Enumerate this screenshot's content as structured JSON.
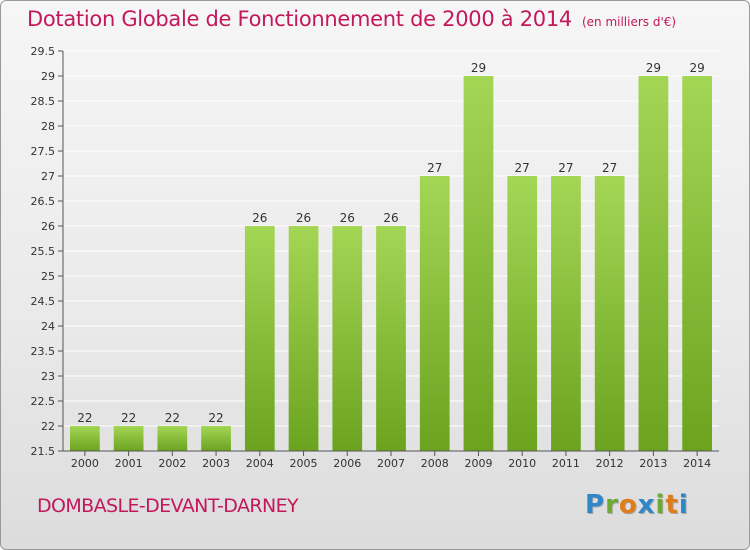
{
  "header": {
    "title": "Dotation Globale de Fonctionnement de 2000 à 2014",
    "subtitle": "(en milliers d'€)"
  },
  "footer": {
    "commune": "DOMBASLE-DEVANT-DARNEY",
    "logo_text": "Proxiti",
    "logo_letters": [
      {
        "ch": "P",
        "color": "#2f86c9"
      },
      {
        "ch": "r",
        "color": "#6cab2d"
      },
      {
        "ch": "o",
        "color": "#e07d1b"
      },
      {
        "ch": "x",
        "color": "#2f86c9"
      },
      {
        "ch": "i",
        "color": "#6cab2d"
      },
      {
        "ch": "t",
        "color": "#e07d1b"
      },
      {
        "ch": "i",
        "color": "#2f86c9"
      }
    ]
  },
  "colors": {
    "accent": "#c3185b",
    "bar_top": "#a4d655",
    "bar_bottom": "#6ba31f",
    "axis": "#555555",
    "grid": "#ffffff",
    "label": "#333333"
  },
  "chart_data": {
    "type": "bar",
    "title": "Dotation Globale de Fonctionnement de 2000 à 2014",
    "subtitle": "(en milliers d'€)",
    "xlabel": "",
    "ylabel": "",
    "categories": [
      "2000",
      "2001",
      "2002",
      "2003",
      "2004",
      "2005",
      "2006",
      "2007",
      "2008",
      "2009",
      "2010",
      "2011",
      "2012",
      "2013",
      "2014"
    ],
    "values": [
      22,
      22,
      22,
      22,
      26,
      26,
      26,
      26,
      27,
      29,
      27,
      27,
      27,
      29,
      29
    ],
    "data_labels": [
      "22",
      "22",
      "22",
      "22",
      "26",
      "26",
      "26",
      "26",
      "27",
      "29",
      "27",
      "27",
      "27",
      "29",
      "29"
    ],
    "ylim": [
      21.5,
      29.5
    ],
    "yticks": [
      21.5,
      22,
      22.5,
      23,
      23.5,
      24,
      24.5,
      25,
      25.5,
      26,
      26.5,
      27,
      27.5,
      28,
      28.5,
      29,
      29.5
    ],
    "ytick_labels": [
      "21.5",
      "22",
      "22.5",
      "23",
      "23.5",
      "24",
      "24.5",
      "25",
      "25.5",
      "26",
      "26.5",
      "27",
      "27.5",
      "28",
      "28.5",
      "29",
      "29.5"
    ],
    "grid": true,
    "legend": "none"
  }
}
